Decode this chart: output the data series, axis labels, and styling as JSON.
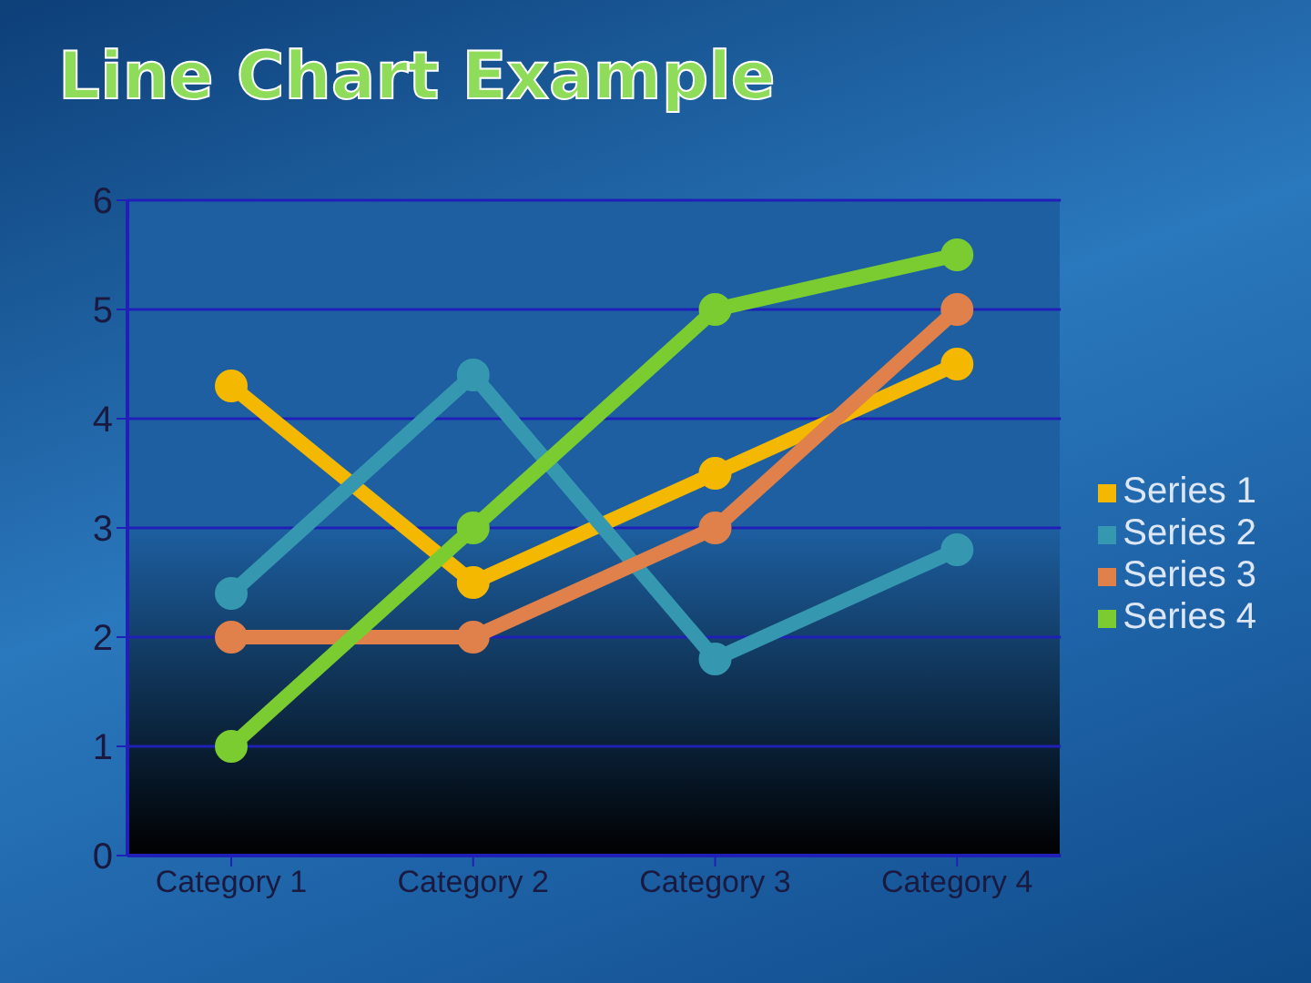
{
  "chart_data": {
    "type": "line",
    "title": "Line Chart Example",
    "categories": [
      "Category 1",
      "Category 2",
      "Category 3",
      "Category 4"
    ],
    "series": [
      {
        "name": "Series 1",
        "color": "#f5b800",
        "values": [
          4.3,
          2.5,
          3.5,
          4.5
        ]
      },
      {
        "name": "Series 2",
        "color": "#3598b0",
        "values": [
          2.4,
          4.4,
          1.8,
          2.8
        ]
      },
      {
        "name": "Series 3",
        "color": "#e0804a",
        "values": [
          2,
          2,
          3,
          5
        ]
      },
      {
        "name": "Series 4",
        "color": "#7acc30",
        "values": [
          1,
          3,
          5,
          5.5
        ]
      }
    ],
    "ylim": [
      0,
      6
    ],
    "yticks": [
      0,
      1,
      2,
      3,
      4,
      5,
      6
    ],
    "grid": "y",
    "legend": "right",
    "marker": "circle",
    "line_style": "solid"
  }
}
